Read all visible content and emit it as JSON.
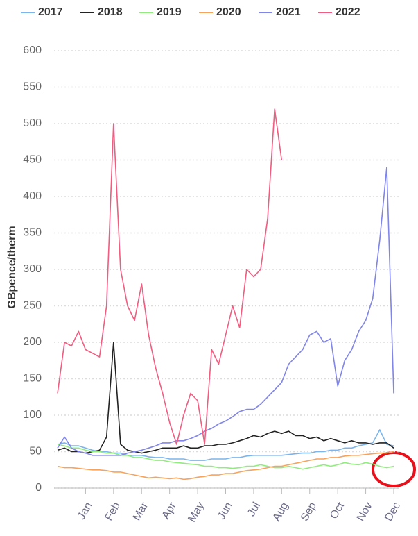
{
  "chart_data": {
    "type": "line",
    "y_label": "GBpence/therm",
    "x": [
      0,
      0.25,
      0.5,
      0.75,
      1,
      1.25,
      1.5,
      1.75,
      2,
      2.25,
      2.5,
      2.75,
      3,
      3.25,
      3.5,
      3.75,
      4,
      4.25,
      4.5,
      4.75,
      5,
      5.25,
      5.5,
      5.75,
      6,
      6.25,
      6.5,
      6.75,
      7,
      7.25,
      7.5,
      7.75,
      8,
      8.25,
      8.5,
      8.75,
      9,
      9.25,
      9.5,
      9.75,
      10,
      10.25,
      10.5,
      10.75,
      11,
      11.25,
      11.5,
      11.75,
      12
    ],
    "xlim": [
      0,
      12
    ],
    "xticks": [
      {
        "value": 1,
        "label": "Jan"
      },
      {
        "value": 2,
        "label": "Feb"
      },
      {
        "value": 3,
        "label": "Mar"
      },
      {
        "value": 4,
        "label": "Apr"
      },
      {
        "value": 5,
        "label": "May"
      },
      {
        "value": 6,
        "label": "Jun"
      },
      {
        "value": 7,
        "label": "Jul"
      },
      {
        "value": 8,
        "label": "Aug"
      },
      {
        "value": 9,
        "label": "Sep"
      },
      {
        "value": 10,
        "label": "Oct"
      },
      {
        "value": 11,
        "label": "Nov"
      },
      {
        "value": 12,
        "label": "Dec"
      }
    ],
    "ylim": [
      0,
      600
    ],
    "yticks": [
      0,
      50,
      100,
      150,
      200,
      250,
      300,
      350,
      400,
      450,
      500,
      550,
      600
    ],
    "grid": true,
    "legend": "top",
    "series": [
      {
        "name": "2017",
        "color": "#7cb5ec",
        "values": [
          60,
          62,
          58,
          58,
          55,
          52,
          50,
          50,
          48,
          48,
          45,
          45,
          45,
          43,
          42,
          42,
          40,
          40,
          40,
          38,
          38,
          38,
          40,
          40,
          40,
          42,
          42,
          44,
          45,
          45,
          45,
          45,
          45,
          46,
          47,
          48,
          48,
          50,
          50,
          52,
          52,
          55,
          55,
          58,
          60,
          62,
          80,
          60,
          58
        ]
      },
      {
        "name": "2018",
        "color": "#222222",
        "values": [
          52,
          55,
          50,
          50,
          48,
          50,
          52,
          70,
          200,
          60,
          52,
          50,
          48,
          50,
          52,
          55,
          55,
          55,
          58,
          55,
          55,
          58,
          58,
          60,
          60,
          62,
          65,
          68,
          72,
          70,
          75,
          78,
          75,
          78,
          72,
          72,
          68,
          70,
          65,
          68,
          65,
          62,
          65,
          62,
          62,
          60,
          62,
          62,
          55
        ]
      },
      {
        "name": "2019",
        "color": "#90ed7d",
        "values": [
          60,
          58,
          55,
          55,
          52,
          50,
          50,
          48,
          48,
          45,
          45,
          42,
          42,
          40,
          38,
          38,
          36,
          35,
          34,
          33,
          32,
          30,
          30,
          28,
          28,
          27,
          28,
          30,
          30,
          32,
          30,
          28,
          28,
          30,
          28,
          26,
          28,
          30,
          32,
          30,
          32,
          35,
          33,
          32,
          35,
          33,
          30,
          28,
          30
        ]
      },
      {
        "name": "2020",
        "color": "#f7a35c",
        "values": [
          30,
          28,
          28,
          27,
          26,
          25,
          25,
          24,
          22,
          22,
          20,
          18,
          16,
          14,
          15,
          14,
          13,
          14,
          12,
          13,
          15,
          16,
          18,
          18,
          20,
          20,
          22,
          24,
          25,
          26,
          28,
          30,
          30,
          32,
          34,
          36,
          38,
          40,
          40,
          42,
          42,
          44,
          45,
          45,
          46,
          47,
          48,
          48,
          50
        ]
      },
      {
        "name": "2021",
        "color": "#8085e9",
        "values": [
          55,
          70,
          55,
          50,
          48,
          45,
          45,
          45,
          45,
          45,
          48,
          50,
          52,
          55,
          58,
          62,
          62,
          65,
          65,
          68,
          72,
          78,
          82,
          88,
          92,
          98,
          105,
          108,
          108,
          115,
          125,
          135,
          145,
          170,
          180,
          190,
          210,
          215,
          200,
          205,
          140,
          175,
          190,
          215,
          230,
          260,
          340,
          440,
          130
        ]
      },
      {
        "name": "2022",
        "color": "#f15c80",
        "values": [
          130,
          200,
          195,
          215,
          190,
          185,
          180,
          250,
          500,
          300,
          250,
          230,
          280,
          210,
          165,
          130,
          90,
          60,
          100,
          130,
          120,
          60,
          190,
          170,
          210,
          250,
          220,
          300,
          290,
          300,
          370,
          520,
          450,
          null,
          null,
          null,
          null,
          null,
          null,
          null,
          null,
          null,
          null,
          null,
          null,
          null,
          null,
          null,
          null
        ]
      }
    ]
  }
}
